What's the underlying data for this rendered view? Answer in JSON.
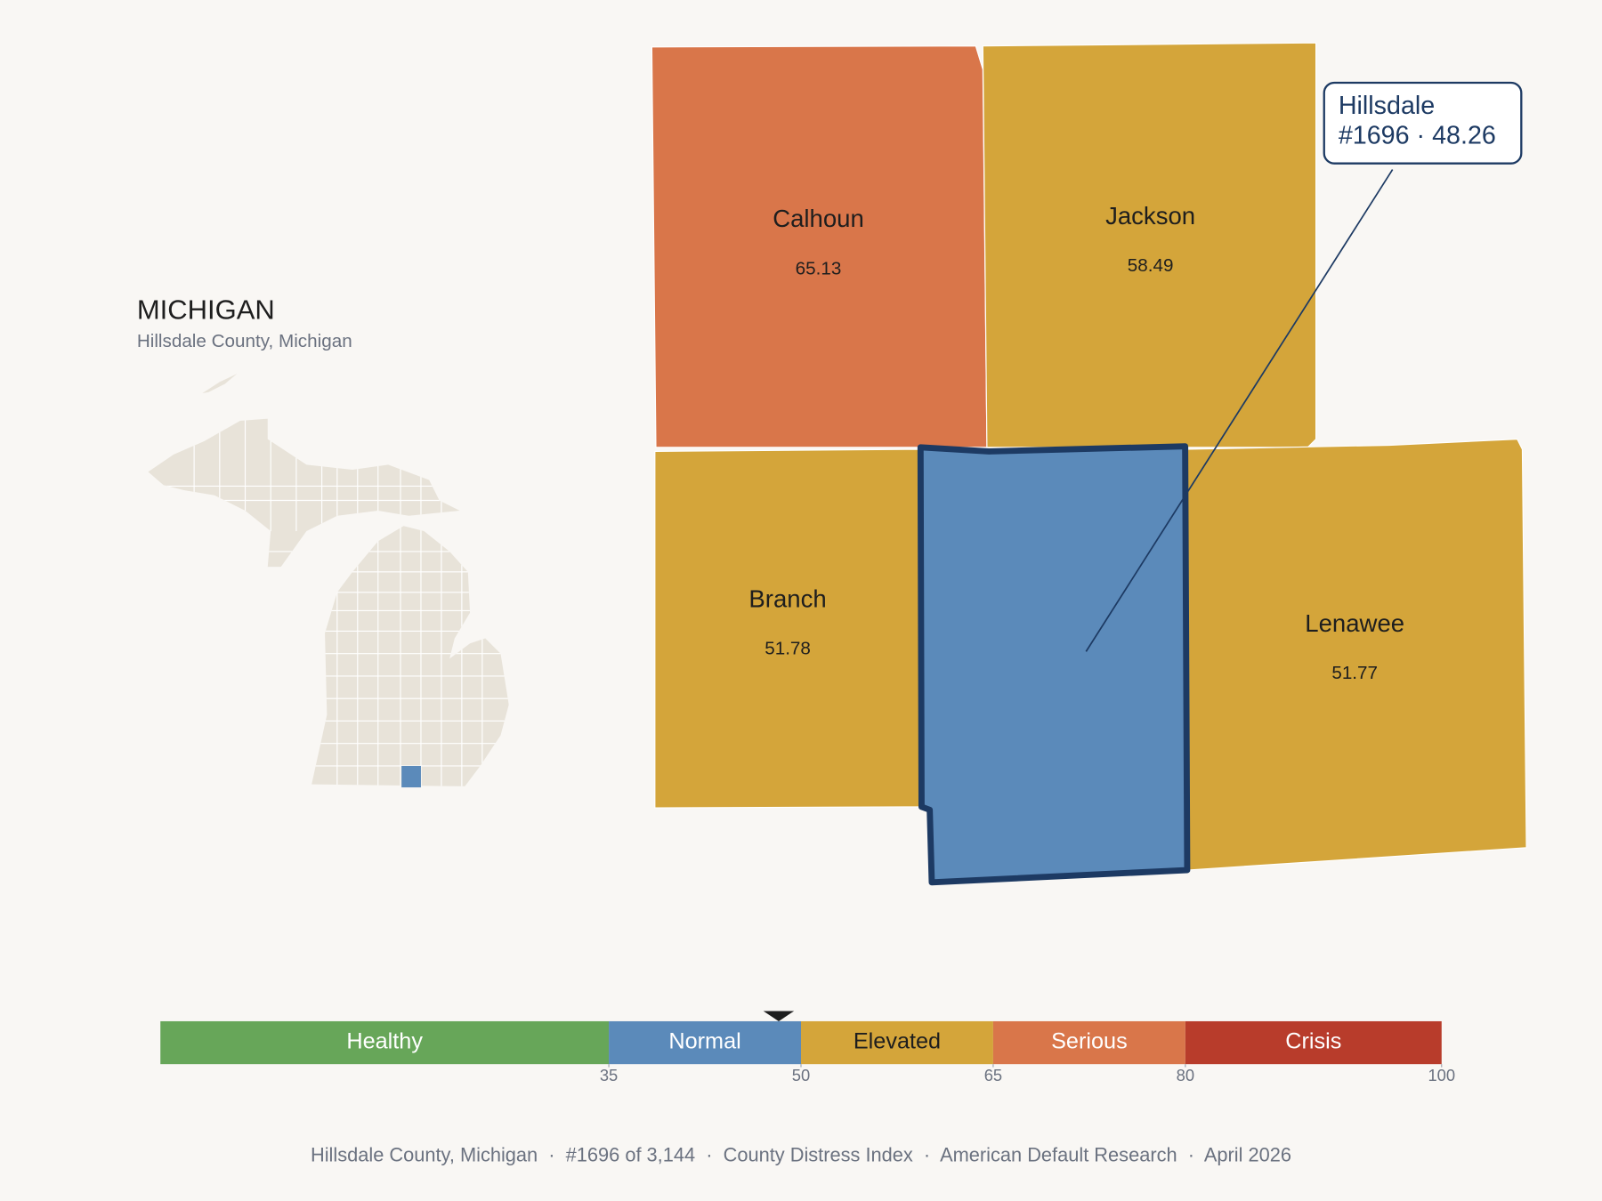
{
  "header": {
    "title": "MICHIGAN",
    "subtitle": "Hillsdale County, Michigan"
  },
  "counties": [
    {
      "name": "Calhoun",
      "score": 65.13,
      "color": "#d9764a"
    },
    {
      "name": "Jackson",
      "score": 58.49,
      "color": "#d4a53a"
    },
    {
      "name": "Branch",
      "score": 51.78,
      "color": "#d4a53a"
    },
    {
      "name": "Lenawee",
      "score": 51.77,
      "color": "#d4a53a"
    }
  ],
  "highlight": {
    "name": "Hillsdale",
    "score": 48.26,
    "color": "#5b8aba",
    "callout": "#1696 · 48.26"
  },
  "scale": {
    "lim": [
      0,
      100
    ],
    "ticks": [
      35,
      50,
      65,
      80,
      100
    ],
    "bands": [
      {
        "label": "Healthy",
        "color": "#67a659"
      },
      {
        "label": "Normal",
        "color": "#5b8aba"
      },
      {
        "label": "Elevated",
        "color": "#d4a53a"
      },
      {
        "label": "Serious",
        "color": "#d9764a"
      },
      {
        "label": "Crisis",
        "color": "#b83c2b"
      }
    ]
  },
  "footer": "Hillsdale County, Michigan  ·  #1696 of 3,144  ·  County Distress Index  ·  American Default Research  ·  April 2026"
}
